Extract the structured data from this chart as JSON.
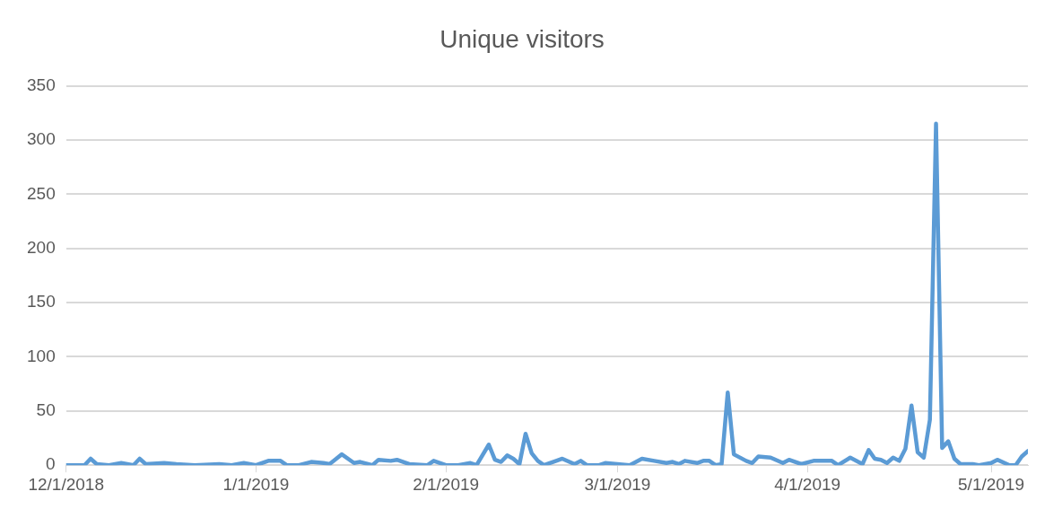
{
  "chart_data": {
    "type": "line",
    "title": "Unique visitors",
    "x": [
      "2018-12-01",
      "2018-12-04",
      "2018-12-05",
      "2018-12-06",
      "2018-12-08",
      "2018-12-10",
      "2018-12-12",
      "2018-12-13",
      "2018-12-14",
      "2018-12-17",
      "2018-12-19",
      "2018-12-22",
      "2018-12-26",
      "2018-12-28",
      "2018-12-30",
      "2019-01-01",
      "2019-01-03",
      "2019-01-05",
      "2019-01-06",
      "2019-01-08",
      "2019-01-10",
      "2019-01-12",
      "2019-01-13",
      "2019-01-15",
      "2019-01-17",
      "2019-01-18",
      "2019-01-20",
      "2019-01-21",
      "2019-01-23",
      "2019-01-24",
      "2019-01-26",
      "2019-01-29",
      "2019-01-30",
      "2019-02-01",
      "2019-02-03",
      "2019-02-05",
      "2019-02-06",
      "2019-02-08",
      "2019-02-09",
      "2019-02-10",
      "2019-02-11",
      "2019-02-12",
      "2019-02-13",
      "2019-02-14",
      "2019-02-15",
      "2019-02-16",
      "2019-02-17",
      "2019-02-19",
      "2019-02-20",
      "2019-02-22",
      "2019-02-23",
      "2019-02-24",
      "2019-02-26",
      "2019-02-27",
      "2019-03-01",
      "2019-03-03",
      "2019-03-05",
      "2019-03-07",
      "2019-03-09",
      "2019-03-10",
      "2019-03-11",
      "2019-03-12",
      "2019-03-14",
      "2019-03-15",
      "2019-03-16",
      "2019-03-17",
      "2019-03-18",
      "2019-03-19",
      "2019-03-20",
      "2019-03-22",
      "2019-03-23",
      "2019-03-24",
      "2019-03-26",
      "2019-03-28",
      "2019-03-29",
      "2019-03-31",
      "2019-04-02",
      "2019-04-05",
      "2019-04-06",
      "2019-04-08",
      "2019-04-10",
      "2019-04-11",
      "2019-04-12",
      "2019-04-13",
      "2019-04-14",
      "2019-04-15",
      "2019-04-16",
      "2019-04-17",
      "2019-04-18",
      "2019-04-19",
      "2019-04-20",
      "2019-04-21",
      "2019-04-22",
      "2019-04-23",
      "2019-04-24",
      "2019-04-25",
      "2019-04-26",
      "2019-04-28",
      "2019-04-29",
      "2019-05-01",
      "2019-05-02",
      "2019-05-04",
      "2019-05-05",
      "2019-05-06",
      "2019-05-07"
    ],
    "series": [
      {
        "color": "#5b9bd5",
        "values": [
          0,
          0,
          6,
          1,
          0,
          2,
          0,
          6,
          1,
          2,
          1,
          0,
          1,
          0,
          2,
          0,
          4,
          4,
          0,
          0,
          3,
          2,
          1,
          10,
          2,
          3,
          0,
          5,
          4,
          5,
          1,
          0,
          4,
          0,
          0,
          2,
          0,
          19,
          5,
          3,
          9,
          6,
          1,
          29,
          11,
          4,
          0,
          4,
          6,
          1,
          4,
          0,
          0,
          2,
          1,
          0,
          6,
          4,
          2,
          3,
          1,
          4,
          2,
          4,
          4,
          0,
          1,
          67,
          10,
          4,
          2,
          8,
          7,
          2,
          5,
          1,
          4,
          4,
          0,
          7,
          1,
          14,
          6,
          5,
          2,
          7,
          4,
          15,
          55,
          12,
          7,
          42,
          315,
          16,
          22,
          6,
          1,
          1,
          0,
          2,
          5,
          0,
          0,
          8,
          13
        ]
      }
    ],
    "xlim": [
      "2018-12-01",
      "2019-05-07"
    ],
    "xticks": [
      {
        "value": "2018-12-01",
        "label": "12/1/2018"
      },
      {
        "value": "2019-01-01",
        "label": "1/1/2019"
      },
      {
        "value": "2019-02-01",
        "label": "2/1/2019"
      },
      {
        "value": "2019-03-01",
        "label": "3/1/2019"
      },
      {
        "value": "2019-04-01",
        "label": "4/1/2019"
      },
      {
        "value": "2019-05-01",
        "label": "5/1/2019"
      }
    ],
    "ylim": [
      0,
      350
    ],
    "yticks": [
      0,
      50,
      100,
      150,
      200,
      250,
      300,
      350
    ],
    "grid": "y",
    "legend": false,
    "marker": "none",
    "line_style": "solid"
  }
}
